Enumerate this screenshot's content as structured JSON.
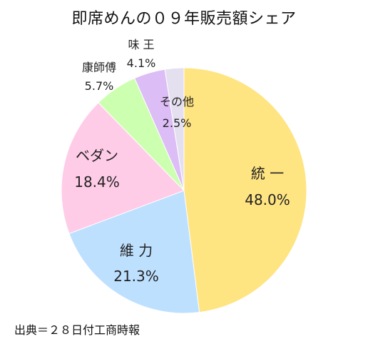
{
  "chart_data": {
    "type": "pie",
    "title": "即席めんの０９年販売額シェア",
    "start": "12 o'clock",
    "direction": "clockwise",
    "slices": [
      {
        "name": "統 一",
        "value": 48.0,
        "label": "48.0%",
        "color": "#FFE482"
      },
      {
        "name": "維 力",
        "value": 21.3,
        "label": "21.3%",
        "color": "#BEE0FF"
      },
      {
        "name": "ベダン",
        "value": 18.4,
        "label": "18.4%",
        "color": "#FFCCE8"
      },
      {
        "name": "康師傅",
        "value": 5.7,
        "label": "5.7%",
        "color": "#CCFFB0"
      },
      {
        "name": "味 王",
        "value": 4.1,
        "label": "4.1%",
        "color": "#DDBDF5"
      },
      {
        "name": "その他",
        "value": 2.5,
        "label": "2.5%",
        "color": "#E4E0F0"
      }
    ]
  },
  "source": "出典＝２８日付工商時報"
}
